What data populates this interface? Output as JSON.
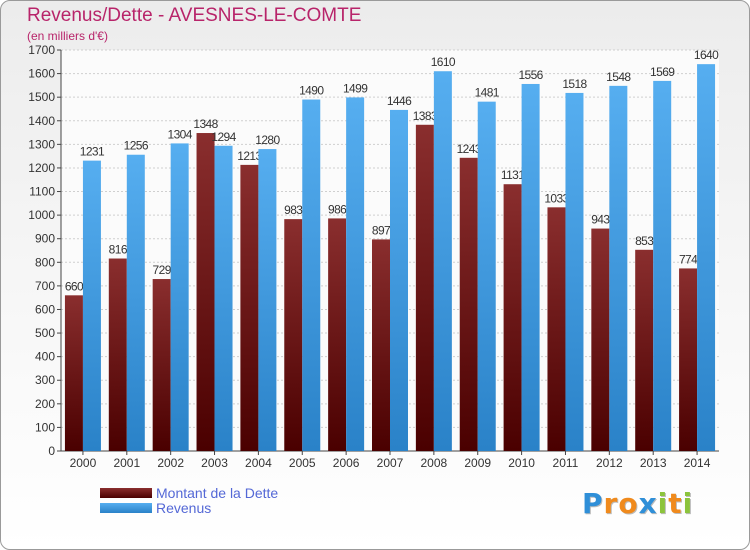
{
  "title": "Revenus/Dette - AVESNES-LE-COMTE",
  "subtitle": "(en milliers d'€)",
  "logo": {
    "letters": [
      "P",
      "r",
      "o",
      "x",
      "i",
      "t",
      "i"
    ],
    "colors": [
      "#2f8fd8",
      "#f08a1c",
      "#f08a1c",
      "#2f8fd8",
      "#8cc43c",
      "#f08a1c",
      "#8cc43c"
    ]
  },
  "chart_data": {
    "type": "bar",
    "title": "Revenus/Dette - AVESNES-LE-COMTE",
    "categories": [
      "2000",
      "2001",
      "2002",
      "2003",
      "2004",
      "2005",
      "2006",
      "2007",
      "2008",
      "2009",
      "2010",
      "2011",
      "2012",
      "2013",
      "2014"
    ],
    "series": [
      {
        "name": "Montant de la Dette",
        "color": "#7a1414",
        "values": [
          660,
          816,
          729,
          1348,
          1213,
          983,
          986,
          897,
          1383,
          1243,
          1131,
          1033,
          943,
          853,
          774
        ],
        "labels": [
          "660",
          "816",
          "729",
          "1348",
          "1213",
          "983",
          "986",
          "897",
          "1383",
          "1243",
          "1131",
          "1033",
          "943",
          "853",
          "774"
        ]
      },
      {
        "name": "Revenus",
        "color": "#4ea7e8",
        "values": [
          1231,
          1256,
          1304,
          1294,
          1280,
          1490,
          1499,
          1446,
          1610,
          1481,
          1556,
          1518,
          1548,
          1569,
          1640
        ],
        "labels": [
          "1231",
          "1256",
          "1304",
          "1294",
          "1280",
          "1490",
          "1499",
          "1446",
          "1610",
          "1481",
          "1556",
          "1518",
          "1548",
          "1569",
          "1640"
        ]
      }
    ],
    "yticks": [
      0,
      100,
      200,
      300,
      400,
      500,
      600,
      700,
      800,
      900,
      1000,
      1100,
      1200,
      1300,
      1400,
      1500,
      1600,
      1700
    ],
    "ylim": [
      0,
      1700
    ],
    "grid": true,
    "legend": "bottom-left"
  }
}
